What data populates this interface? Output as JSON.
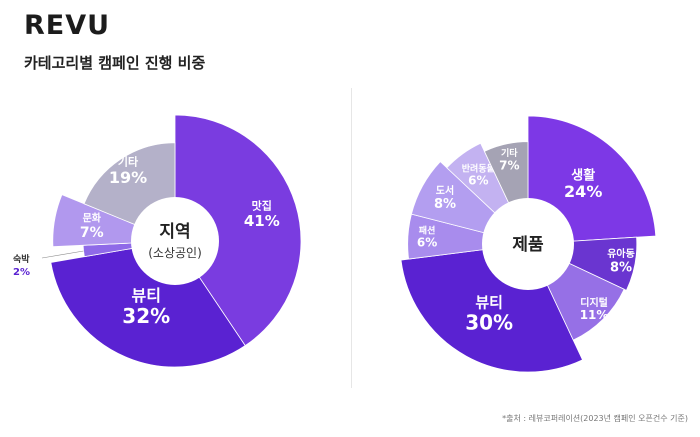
{
  "brand": {
    "logo_text": "REVU"
  },
  "header": {
    "subtitle": "카테고리별 캠페인 진행 비중"
  },
  "footnote": "*출처 : 레뷰코퍼레이션(2023년 캠페인 오픈건수 기준)",
  "chart_data": [
    {
      "type": "pie",
      "center_title": "지역",
      "center_subtitle": "(소상공인)",
      "slices": [
        {
          "label": "맛집",
          "value": 41,
          "display": "41%",
          "color": "#7a3ce0"
        },
        {
          "label": "뷰티",
          "value": 32,
          "display": "32%",
          "color": "#5a22d2"
        },
        {
          "label": "숙박",
          "value": 2,
          "display": "2%",
          "color": "#8f6ae8"
        },
        {
          "label": "문화",
          "value": 7,
          "display": "7%",
          "color": "#b198ee"
        },
        {
          "label": "기타",
          "value": 19,
          "display": "19%",
          "color": "#b4b1c9"
        }
      ]
    },
    {
      "type": "pie",
      "center_title": "제품",
      "slices": [
        {
          "label": "생활",
          "value": 24,
          "display": "24%",
          "color": "#7d38e6"
        },
        {
          "label": "유아동",
          "value": 8,
          "display": "8%",
          "color": "#6a35d0"
        },
        {
          "label": "디지털",
          "value": 11,
          "display": "11%",
          "color": "#9670e6"
        },
        {
          "label": "뷰티",
          "value": 30,
          "display": "30%",
          "color": "#5a22d2"
        },
        {
          "label": "패션",
          "value": 6,
          "display": "6%",
          "color": "#a88ced"
        },
        {
          "label": "도서",
          "value": 8,
          "display": "8%",
          "color": "#b39ef0"
        },
        {
          "label": "반려동물",
          "value": 6,
          "display": "6%",
          "color": "#c3b2f1"
        },
        {
          "label": "기타",
          "value": 7,
          "display": "7%",
          "color": "#a5a3b4"
        }
      ]
    }
  ]
}
